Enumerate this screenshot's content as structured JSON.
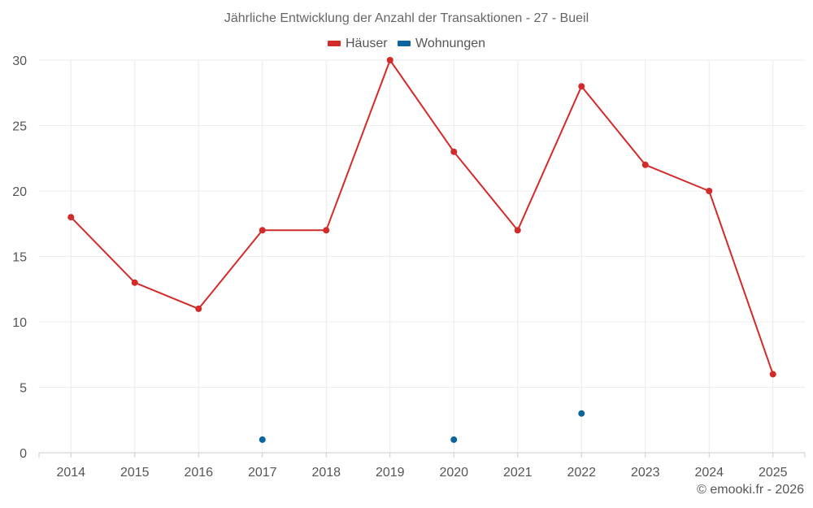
{
  "chart_data": {
    "type": "line",
    "title": "Jährliche Entwicklung der Anzahl der Transaktionen - 27 - Bueil",
    "categories": [
      "2014",
      "2015",
      "2016",
      "2017",
      "2018",
      "2019",
      "2020",
      "2021",
      "2022",
      "2023",
      "2024",
      "2025"
    ],
    "ylim": [
      0,
      30
    ],
    "yticks": [
      0,
      5,
      10,
      15,
      20,
      25,
      30
    ],
    "grid": true,
    "legend_position": "top-center",
    "series": [
      {
        "name": "Häuser",
        "color": "#d32a2a",
        "values": [
          18,
          13,
          11,
          17,
          17,
          30,
          23,
          17,
          28,
          22,
          20,
          6
        ]
      },
      {
        "name": "Wohnungen",
        "color": "#0d65a0",
        "values": [
          null,
          null,
          null,
          1,
          null,
          null,
          1,
          null,
          3,
          null,
          null,
          null
        ]
      }
    ]
  },
  "credit": "© emooki.fr - 2026"
}
